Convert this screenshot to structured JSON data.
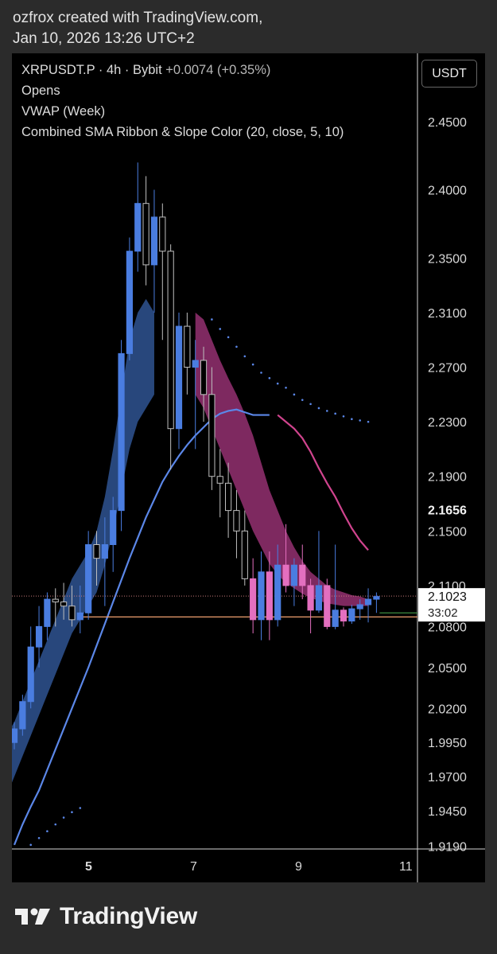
{
  "header": {
    "line1": "ozfrox created with TradingView.com,",
    "line2": "Jan 10, 2026 13:26 UTC+2"
  },
  "legend": {
    "symbol": "XRPUSDT.P · 4h · Bybit",
    "change": "+0.0074 (+0.35%)",
    "ind1": "Opens",
    "ind2": "VWAP (Week)",
    "ind3": "Combined SMA Ribbon & Slope Color (20, close, 5, 10)"
  },
  "currency_button": "USDT",
  "price_badge": {
    "price": "2.1023",
    "countdown": "33:02"
  },
  "footer": {
    "brand": "TradingView"
  },
  "colors": {
    "up": "#4a7de0",
    "down_dim": "#bfbfbf",
    "down_pink": "#e36fbf",
    "vwap": "#5b87e8",
    "ribbon_blue": "#2c4f8a",
    "ribbon_pink": "#8c2e6a",
    "pink_line": "#d0448e",
    "open_line": "#f0a070"
  },
  "chart_data": {
    "type": "candlestick",
    "y_axis_labels": [
      "2.4500",
      "2.4000",
      "2.3500",
      "2.3100",
      "2.2700",
      "2.2300",
      "2.1900",
      "2.1656",
      "2.1500",
      "2.1100",
      "2.0800",
      "2.0500",
      "2.0200",
      "1.9950",
      "1.9700",
      "1.9450",
      "1.9190"
    ],
    "x_axis_labels": [
      "5",
      "7",
      "9",
      "11"
    ],
    "ylim": [
      1.917,
      2.5
    ],
    "last_price": 2.1023,
    "open_level": 2.087,
    "candles": [
      {
        "o": 1.995,
        "h": 2.01,
        "l": 1.99,
        "c": 2.005
      },
      {
        "o": 2.005,
        "h": 2.03,
        "l": 2.0,
        "c": 2.025
      },
      {
        "o": 2.025,
        "h": 2.08,
        "l": 2.02,
        "c": 2.065
      },
      {
        "o": 2.065,
        "h": 2.095,
        "l": 2.05,
        "c": 2.08
      },
      {
        "o": 2.08,
        "h": 2.105,
        "l": 2.07,
        "c": 2.1
      },
      {
        "o": 2.1,
        "h": 2.108,
        "l": 2.08,
        "c": 2.098
      },
      {
        "o": 2.098,
        "h": 2.112,
        "l": 2.085,
        "c": 2.095
      },
      {
        "o": 2.095,
        "h": 2.11,
        "l": 2.08,
        "c": 2.085
      },
      {
        "o": 2.085,
        "h": 2.11,
        "l": 2.075,
        "c": 2.09
      },
      {
        "o": 2.09,
        "h": 2.15,
        "l": 2.085,
        "c": 2.14
      },
      {
        "o": 2.14,
        "h": 2.15,
        "l": 2.11,
        "c": 2.13
      },
      {
        "o": 2.13,
        "h": 2.16,
        "l": 2.095,
        "c": 2.14
      },
      {
        "o": 2.14,
        "h": 2.175,
        "l": 2.12,
        "c": 2.165
      },
      {
        "o": 2.165,
        "h": 2.29,
        "l": 2.15,
        "c": 2.28
      },
      {
        "o": 2.28,
        "h": 2.365,
        "l": 2.275,
        "c": 2.355
      },
      {
        "o": 2.355,
        "h": 2.42,
        "l": 2.34,
        "c": 2.39
      },
      {
        "o": 2.39,
        "h": 2.41,
        "l": 2.33,
        "c": 2.345
      },
      {
        "o": 2.345,
        "h": 2.4,
        "l": 2.31,
        "c": 2.38
      },
      {
        "o": 2.38,
        "h": 2.39,
        "l": 2.29,
        "c": 2.355
      },
      {
        "o": 2.355,
        "h": 2.36,
        "l": 2.195,
        "c": 2.225
      },
      {
        "o": 2.225,
        "h": 2.31,
        "l": 2.21,
        "c": 2.3
      },
      {
        "o": 2.3,
        "h": 2.31,
        "l": 2.25,
        "c": 2.27
      },
      {
        "o": 2.27,
        "h": 2.29,
        "l": 2.21,
        "c": 2.275
      },
      {
        "o": 2.275,
        "h": 2.285,
        "l": 2.23,
        "c": 2.25
      },
      {
        "o": 2.25,
        "h": 2.27,
        "l": 2.18,
        "c": 2.19
      },
      {
        "o": 2.19,
        "h": 2.21,
        "l": 2.16,
        "c": 2.185
      },
      {
        "o": 2.185,
        "h": 2.2,
        "l": 2.145,
        "c": 2.165
      },
      {
        "o": 2.165,
        "h": 2.18,
        "l": 2.13,
        "c": 2.15
      },
      {
        "o": 2.15,
        "h": 2.165,
        "l": 2.11,
        "c": 2.115
      },
      {
        "o": 2.115,
        "h": 2.13,
        "l": 2.075,
        "c": 2.085
      },
      {
        "o": 2.085,
        "h": 2.135,
        "l": 2.07,
        "c": 2.12
      },
      {
        "o": 2.12,
        "h": 2.135,
        "l": 2.07,
        "c": 2.085
      },
      {
        "o": 2.085,
        "h": 2.14,
        "l": 2.08,
        "c": 2.125
      },
      {
        "o": 2.125,
        "h": 2.155,
        "l": 2.105,
        "c": 2.11
      },
      {
        "o": 2.11,
        "h": 2.13,
        "l": 2.095,
        "c": 2.125
      },
      {
        "o": 2.125,
        "h": 2.14,
        "l": 2.1,
        "c": 2.11
      },
      {
        "o": 2.11,
        "h": 2.115,
        "l": 2.075,
        "c": 2.092
      },
      {
        "o": 2.092,
        "h": 2.15,
        "l": 2.09,
        "c": 2.11
      },
      {
        "o": 2.11,
        "h": 2.115,
        "l": 2.078,
        "c": 2.08
      },
      {
        "o": 2.08,
        "h": 2.14,
        "l": 2.078,
        "c": 2.092
      },
      {
        "o": 2.092,
        "h": 2.094,
        "l": 2.08,
        "c": 2.084
      },
      {
        "o": 2.084,
        "h": 2.096,
        "l": 2.082,
        "c": 2.093
      },
      {
        "o": 2.093,
        "h": 2.1,
        "l": 2.085,
        "c": 2.096
      },
      {
        "o": 2.096,
        "h": 2.108,
        "l": 2.083,
        "c": 2.1
      },
      {
        "o": 2.1,
        "h": 2.105,
        "l": 2.09,
        "c": 2.102
      }
    ],
    "vwap": [
      1.92,
      1.935,
      1.948,
      1.96,
      1.975,
      1.99,
      2.005,
      2.02,
      2.035,
      2.05,
      2.066,
      2.082,
      2.098,
      2.114,
      2.13,
      2.145,
      2.16,
      2.173,
      2.186,
      2.196,
      2.205,
      2.213,
      2.22,
      2.226,
      2.232,
      2.236,
      2.238,
      2.239,
      2.237,
      2.235,
      2.235,
      2.235
    ],
    "ribbon_blue_upper": [
      2.0,
      2.01,
      2.025,
      2.04,
      2.055,
      2.07,
      2.085,
      2.1,
      2.115,
      2.125,
      2.135,
      2.15,
      2.175,
      2.21,
      2.25,
      2.29,
      2.31,
      2.32,
      2.31
    ],
    "ribbon_blue_lower": [
      1.955,
      1.97,
      1.985,
      2.0,
      2.015,
      2.03,
      2.045,
      2.06,
      2.075,
      2.085,
      2.095,
      2.105,
      2.125,
      2.15,
      2.18,
      2.21,
      2.23,
      2.24,
      2.25
    ],
    "ribbon_pink_upper": [
      2.31,
      2.305,
      2.29,
      2.275,
      2.262,
      2.25,
      2.236,
      2.22,
      2.2,
      2.18,
      2.165,
      2.15,
      2.138,
      2.128,
      2.12,
      2.115,
      2.11,
      2.107,
      2.105,
      2.103,
      2.102,
      2.1
    ],
    "ribbon_pink_lower": [
      2.25,
      2.24,
      2.225,
      2.21,
      2.195,
      2.18,
      2.165,
      2.15,
      2.138,
      2.126,
      2.118,
      2.112,
      2.108,
      2.104,
      2.101,
      2.099,
      2.097,
      2.096,
      2.095,
      2.095,
      2.095,
      2.095
    ],
    "sma_pink": [
      2.235,
      2.23,
      2.225,
      2.218,
      2.208,
      2.196,
      2.185,
      2.175,
      2.163,
      2.152,
      2.143,
      2.136
    ],
    "dots_high": [
      2.305,
      2.298,
      2.292,
      2.285,
      2.278,
      2.272,
      2.266,
      2.262,
      2.258,
      2.255,
      2.25,
      2.246,
      2.243,
      2.24,
      2.238,
      2.236,
      2.234,
      2.232,
      2.231,
      2.23
    ],
    "dots_low": [
      1.92,
      1.925,
      1.93,
      1.935,
      1.94,
      1.944,
      1.947
    ]
  }
}
